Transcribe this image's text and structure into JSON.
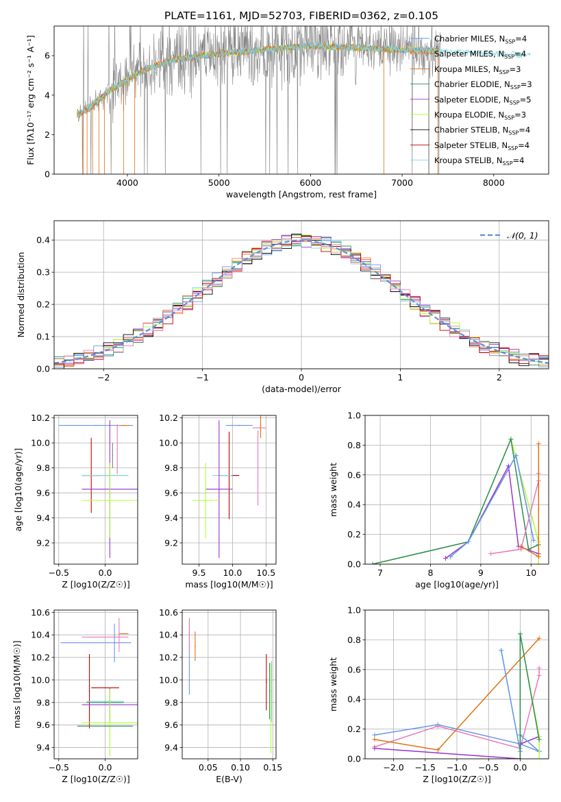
{
  "title": "PLATE=1161, MJD=52703, FIBERID=0362, z=0.105",
  "colors": {
    "chabrier_miles": "#6495ED",
    "salpeter_miles": "#FF7F50",
    "kroupa_miles": "#E07010",
    "chabrier_elodie": "#2E8B57",
    "salpeter_elodie": "#9932CC",
    "kroupa_elodie": "#ADFF2F",
    "chabrier_stelib": "#000000",
    "salpeter_stelib": "#C00000",
    "kroupa_stelib": "#7FD8E0",
    "pink": "#E878B8",
    "gray": "#808080"
  },
  "chart_data": [
    {
      "id": "spectrum",
      "type": "line",
      "xlabel": "wavelength [Angstrom, rest frame]",
      "ylabel": "Flux [fλ10⁻¹⁷ erg cm⁻² s⁻¹ A⁻¹]",
      "xlim": [
        3200,
        8600
      ],
      "ylim": [
        0,
        7.5
      ],
      "xticks": [
        4000,
        5000,
        6000,
        7000,
        8000
      ],
      "yticks": [
        0,
        2,
        4,
        6
      ],
      "continuum": {
        "x": [
          3450,
          3600,
          3800,
          4000,
          4200,
          4500,
          5000,
          5500,
          6000,
          6500,
          7000,
          7500,
          8000,
          8400
        ],
        "y": [
          3.0,
          3.4,
          4.2,
          4.8,
          5.3,
          5.8,
          6.1,
          6.3,
          6.5,
          6.4,
          6.3,
          6.2,
          6.1,
          6.0
        ]
      },
      "legend": [
        {
          "label": "Chabrier MILES, NSSP=4",
          "color": "#6495ED"
        },
        {
          "label": "Salpeter MILES, NSSP=4",
          "color": "#FF7F50"
        },
        {
          "label": "Kroupa MILES, NSSP=3",
          "color": "#E07010"
        },
        {
          "label": "Chabrier ELODIE, NSSP=3",
          "color": "#2E8B57"
        },
        {
          "label": "Salpeter ELODIE, NSSP=5",
          "color": "#9932CC"
        },
        {
          "label": "Kroupa ELODIE, NSSP=3",
          "color": "#ADFF2F"
        },
        {
          "label": "Chabrier STELIB, NSSP=4",
          "color": "#000000"
        },
        {
          "label": "Salpeter STELIB, NSSP=4",
          "color": "#C00000"
        },
        {
          "label": "Kroupa STELIB, NSSP=4",
          "color": "#7FD8E0"
        }
      ]
    },
    {
      "id": "residuals",
      "type": "line",
      "xlabel": "(data-model)/error",
      "ylabel": "Normed distribution",
      "xlim": [
        -2.5,
        2.5
      ],
      "ylim": [
        0,
        0.46
      ],
      "xticks": [
        -2,
        -1,
        0,
        1,
        2
      ],
      "yticks": [
        0.0,
        0.1,
        0.2,
        0.3,
        0.4
      ],
      "grid": true,
      "legend": [
        {
          "label": "𝒩(0, 1)",
          "color": "#5B8FD9"
        }
      ],
      "bin_width": 0.1
    },
    {
      "id": "age_vs_Z",
      "type": "scatter",
      "xlabel": "Z [log10(Z/Z☉)]",
      "ylabel": "age [log10(age/yr)]",
      "xlim": [
        -0.55,
        0.35
      ],
      "ylim": [
        9.03,
        10.22
      ],
      "xticks": [
        -0.5,
        0.0,
        0.5
      ],
      "yticks": [
        9.2,
        9.4,
        9.6,
        9.8,
        10.0,
        10.2
      ],
      "points": [
        {
          "x": -0.1,
          "y": 10.14,
          "xerr": 0.4,
          "color": "#6495ED"
        },
        {
          "x": 0.2,
          "y": 10.14,
          "xerr": 0.06,
          "color": "#E07010"
        },
        {
          "x": 0.15,
          "y": 10.14,
          "xerr": 0.02,
          "yerr": 0.0,
          "color": "#E878B8"
        },
        {
          "x": 0.0,
          "y": 9.74,
          "xerr": 0.25,
          "color": "#2E8B57"
        },
        {
          "x": -0.15,
          "y": 9.74,
          "xerr": 0.1,
          "yerr": 0.3,
          "color": "#C00000"
        },
        {
          "x": 0.0,
          "y": 9.74,
          "xerr": 0.25,
          "color": "#7FD8E0"
        },
        {
          "x": 0.05,
          "y": 9.63,
          "xerr": 0.3,
          "yerr": 0.55,
          "color": "#9932CC"
        },
        {
          "x": 0.05,
          "y": 9.54,
          "xerr": 0.3,
          "yerr": 0.3,
          "color": "#ADFF2F"
        },
        {
          "x": 0.13,
          "y": 9.95,
          "yerr": 0.2,
          "color": "#E878B8"
        },
        {
          "x": 0.08,
          "y": 9.9,
          "yerr": 0.1,
          "color": "#808080"
        }
      ]
    },
    {
      "id": "age_vs_mass",
      "type": "scatter",
      "xlabel": "mass [log10(M/M☉)]",
      "ylabel": "",
      "xlim": [
        9.25,
        10.65
      ],
      "ylim": [
        9.03,
        10.22
      ],
      "xticks": [
        9.5,
        10.0,
        10.5
      ],
      "yticks": [
        9.2,
        9.4,
        9.6,
        9.8,
        10.0,
        10.2
      ],
      "points": [
        {
          "x": 10.1,
          "y": 10.14,
          "xerr": 0.2,
          "color": "#6495ED"
        },
        {
          "x": 10.4,
          "y": 10.12,
          "xerr": 0.1,
          "color": "#E878B8"
        },
        {
          "x": 10.42,
          "y": 10.14,
          "yerr": 0.1,
          "color": "#E07010"
        },
        {
          "x": 9.95,
          "y": 9.74,
          "xerr": 0.15,
          "color": "#2E8B57"
        },
        {
          "x": 9.95,
          "y": 9.74,
          "xerr": 0.15,
          "yerr": 0.35,
          "color": "#C00000"
        },
        {
          "x": 9.85,
          "y": 9.74,
          "xerr": 0.15,
          "color": "#7FD8E0"
        },
        {
          "x": 9.8,
          "y": 9.63,
          "xerr": 0.2,
          "yerr": 0.55,
          "color": "#9932CC"
        },
        {
          "x": 9.6,
          "y": 9.54,
          "xerr": 0.2,
          "yerr": 0.3,
          "color": "#ADFF2F"
        },
        {
          "x": 10.38,
          "y": 9.8,
          "yerr": 0.3,
          "color": "#E878B8"
        }
      ]
    },
    {
      "id": "weight_vs_age",
      "type": "line",
      "xlabel": "age [log10(age/yr)]",
      "ylabel": "mass weight",
      "xlim": [
        6.7,
        10.35
      ],
      "ylim": [
        0,
        1.0
      ],
      "xticks": [
        7,
        8,
        9,
        10
      ],
      "yticks": [
        0.0,
        0.2,
        0.4,
        0.6,
        0.8,
        1.0
      ],
      "series": [
        {
          "x": [
            6.85,
            8.75,
            9.6,
            10.15,
            10.15
          ],
          "y": [
            0.0,
            0.15,
            0.84,
            0.15,
            0.0
          ],
          "color": "#ADFF2F"
        },
        {
          "x": [
            6.85,
            8.75,
            9.6,
            9.95,
            10.15
          ],
          "y": [
            0.0,
            0.15,
            0.84,
            0.1,
            0.13
          ],
          "color": "#2E8B57"
        },
        {
          "x": [
            8.3,
            8.75,
            9.55,
            9.75,
            10.15
          ],
          "y": [
            0.04,
            0.15,
            0.66,
            0.12,
            0.07
          ],
          "color": "#9932CC"
        },
        {
          "x": [
            8.4,
            8.75,
            9.7,
            10.05
          ],
          "y": [
            0.05,
            0.15,
            0.73,
            0.16
          ],
          "color": "#7FD8E0"
        },
        {
          "x": [
            8.4,
            8.75,
            9.7,
            10.05
          ],
          "y": [
            0.05,
            0.15,
            0.73,
            0.16
          ],
          "color": "#6495ED"
        },
        {
          "x": [
            9.2,
            9.8,
            10.15,
            10.15
          ],
          "y": [
            0.07,
            0.1,
            0.56,
            0.61
          ],
          "color": "#E878B8"
        },
        {
          "x": [
            9.8,
            10.15,
            10.15
          ],
          "y": [
            0.12,
            0.05,
            0.81
          ],
          "color": "#E07010"
        }
      ]
    },
    {
      "id": "mass_vs_Z",
      "type": "scatter",
      "xlabel": "Z [log10(Z/Z☉)]",
      "ylabel": "mass [log10(M/M☉)]",
      "xlim": [
        -0.55,
        0.35
      ],
      "ylim": [
        9.3,
        10.62
      ],
      "xticks": [
        -0.5,
        0.0,
        0.5
      ],
      "yticks": [
        9.4,
        9.6,
        9.8,
        10.0,
        10.2,
        10.4,
        10.6
      ],
      "points": [
        {
          "x": -0.1,
          "y": 10.33,
          "xerr": 0.38,
          "color": "#6495ED"
        },
        {
          "x": 0.1,
          "y": 10.33,
          "yerr": 0.17,
          "color": "#6495ED"
        },
        {
          "x": 0.0,
          "y": 10.38,
          "xerr": 0.25,
          "color": "#E878B8"
        },
        {
          "x": 0.2,
          "y": 10.41,
          "xerr": 0.05,
          "color": "#E07010"
        },
        {
          "x": 0.15,
          "y": 10.4,
          "yerr": 0.15,
          "color": "#E878B8"
        },
        {
          "x": 0.0,
          "y": 9.93,
          "xerr": 0.15,
          "color": "#C00000"
        },
        {
          "x": -0.17,
          "y": 9.9,
          "yerr": 0.33,
          "color": "#C00000"
        },
        {
          "x": 0.0,
          "y": 9.8,
          "xerr": 0.2,
          "color": "#2E8B57"
        },
        {
          "x": 0.0,
          "y": 9.81,
          "xerr": 0.2,
          "color": "#7FD8E0"
        },
        {
          "x": 0.05,
          "y": 9.78,
          "xerr": 0.3,
          "yerr": 0.15,
          "color": "#9932CC"
        },
        {
          "x": 0.05,
          "y": 9.62,
          "xerr": 0.3,
          "yerr": 0.3,
          "color": "#ADFF2F"
        },
        {
          "x": 0.0,
          "y": 9.59,
          "xerr": 0.3,
          "color": "#2E8B57"
        }
      ]
    },
    {
      "id": "mass_vs_ebv",
      "type": "scatter",
      "xlabel": "E(B-V)",
      "ylabel": "",
      "xlim": [
        0.01,
        0.155
      ],
      "ylim": [
        9.3,
        10.62
      ],
      "xticks": [
        0.05,
        0.1,
        0.15
      ],
      "yticks": [
        9.4,
        9.6,
        9.8,
        10.0,
        10.2,
        10.4,
        10.6
      ],
      "points": [
        {
          "x": 0.021,
          "y": 10.2,
          "yerr": 0.33,
          "color": "#6495ED"
        },
        {
          "x": 0.021,
          "y": 10.4,
          "yerr": 0.15,
          "color": "#E878B8"
        },
        {
          "x": 0.03,
          "y": 10.3,
          "yerr": 0.13,
          "color": "#E07010"
        },
        {
          "x": 0.14,
          "y": 9.98,
          "yerr": 0.25,
          "color": "#C00000"
        },
        {
          "x": 0.145,
          "y": 9.9,
          "yerr": 0.25,
          "color": "#2E8B57"
        },
        {
          "x": 0.147,
          "y": 9.75,
          "yerr": 0.4,
          "color": "#ADFF2F"
        },
        {
          "x": 0.148,
          "y": 9.9,
          "yerr": 0.27,
          "color": "#7FD8E0"
        }
      ]
    },
    {
      "id": "weight_vs_Z",
      "type": "line",
      "xlabel": "Z [log10(Z/Z☉)]",
      "ylabel": "mass weight",
      "xlim": [
        -2.45,
        0.45
      ],
      "ylim": [
        0,
        1.0
      ],
      "xticks": [
        -2.0,
        -1.5,
        -1.0,
        -0.5,
        0.0
      ],
      "yticks": [
        0.0,
        0.2,
        0.4,
        0.6,
        0.8,
        1.0
      ],
      "series": [
        {
          "x": [
            -2.3,
            -1.3,
            0.0,
            0.3
          ],
          "y": [
            0.16,
            0.23,
            0.1,
            0.05
          ],
          "color": "#6495ED"
        },
        {
          "x": [
            -2.3,
            -1.3,
            0.0,
            0.3,
            0.3
          ],
          "y": [
            0.08,
            0.22,
            0.07,
            0.56,
            0.61
          ],
          "color": "#E878B8"
        },
        {
          "x": [
            -2.3,
            -1.3,
            0.3
          ],
          "y": [
            0.13,
            0.06,
            0.81
          ],
          "color": "#E07010"
        },
        {
          "x": [
            -2.3,
            0.0,
            0.0,
            0.3
          ],
          "y": [
            0.07,
            0.0,
            0.1,
            0.15
          ],
          "color": "#9932CC"
        },
        {
          "x": [
            -0.3,
            0.0,
            0.0,
            0.3
          ],
          "y": [
            0.73,
            0.05,
            0.16,
            0.05
          ],
          "color": "#7FD8E0"
        },
        {
          "x": [
            -0.3,
            0.0,
            0.0,
            0.3
          ],
          "y": [
            0.73,
            0.05,
            0.16,
            0.05
          ],
          "color": "#6495ED"
        },
        {
          "x": [
            0.0,
            0.0,
            0.3,
            0.3
          ],
          "y": [
            0.0,
            0.84,
            0.15,
            0.0
          ],
          "color": "#ADFF2F"
        },
        {
          "x": [
            0.0,
            0.0,
            0.3
          ],
          "y": [
            0.0,
            0.84,
            0.13
          ],
          "color": "#2E8B57"
        }
      ]
    }
  ]
}
